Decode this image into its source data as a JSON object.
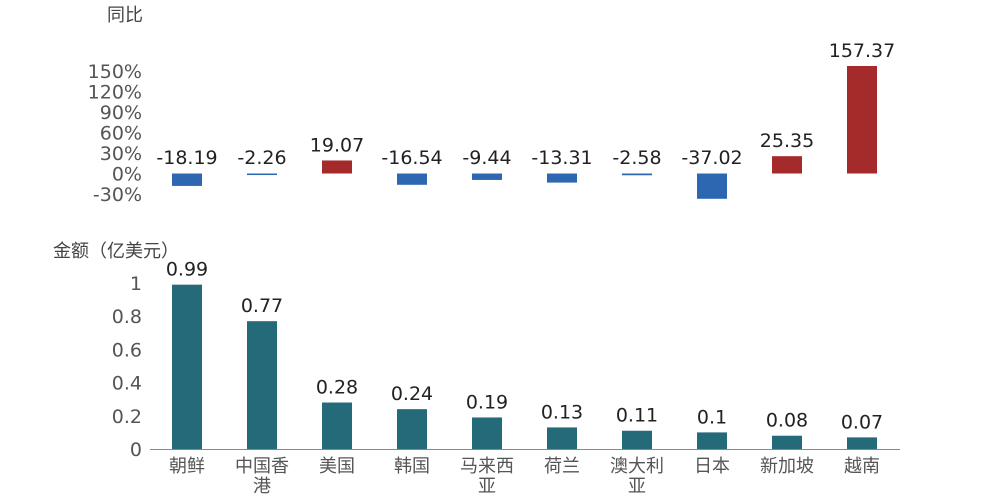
{
  "chart_data": [
    {
      "type": "bar",
      "ylabel": "同比",
      "categories": [
        "朝鲜",
        "中国香港",
        "美国",
        "韩国",
        "马来西亚",
        "荷兰",
        "澳大利亚",
        "日本",
        "新加坡",
        "越南"
      ],
      "values": [
        -18.19,
        -2.26,
        19.07,
        -16.54,
        -9.44,
        -13.31,
        -2.58,
        -37.02,
        25.35,
        157.37
      ],
      "data_labels": [
        "-18.19",
        "-2.26",
        "19.07",
        "-16.54",
        "-9.44",
        "-13.31",
        "-2.58",
        "-37.02",
        "25.35",
        "157.37"
      ],
      "yticks": [
        -30,
        0,
        30,
        60,
        90,
        120,
        150
      ],
      "ytick_labels": [
        "-30%",
        "0%",
        "30%",
        "60%",
        "90%",
        "120%",
        "150%"
      ],
      "ylim": [
        -30,
        157.37
      ],
      "colors": {
        "positive": "#a52a2a",
        "negative": "#2e67b1"
      },
      "grid": false
    },
    {
      "type": "bar",
      "ylabel": "金额（亿美元）",
      "categories": [
        "朝鲜",
        "中国香港",
        "美国",
        "韩国",
        "马来西亚",
        "荷兰",
        "澳大利亚",
        "日本",
        "新加坡",
        "越南"
      ],
      "category_lines": [
        [
          "朝鲜"
        ],
        [
          "中国香",
          "港"
        ],
        [
          "美国"
        ],
        [
          "韩国"
        ],
        [
          "马来西",
          "亚"
        ],
        [
          "荷兰"
        ],
        [
          "澳大利",
          "亚"
        ],
        [
          "日本"
        ],
        [
          "新加坡"
        ],
        [
          "越南"
        ]
      ],
      "values": [
        0.99,
        0.77,
        0.28,
        0.24,
        0.19,
        0.13,
        0.11,
        0.1,
        0.08,
        0.07
      ],
      "data_labels": [
        "0.99",
        "0.77",
        "0.28",
        "0.24",
        "0.19",
        "0.13",
        "0.11",
        "0.1",
        "0.08",
        "0.07"
      ],
      "yticks": [
        0,
        0.2,
        0.4,
        0.6,
        0.8,
        1
      ],
      "ytick_labels": [
        "0",
        "0.2",
        "0.4",
        "0.6",
        "0.8",
        "1"
      ],
      "ylim": [
        0,
        1
      ],
      "colors": {
        "bar": "#256a78",
        "axis": "#888888"
      },
      "grid": false
    }
  ]
}
